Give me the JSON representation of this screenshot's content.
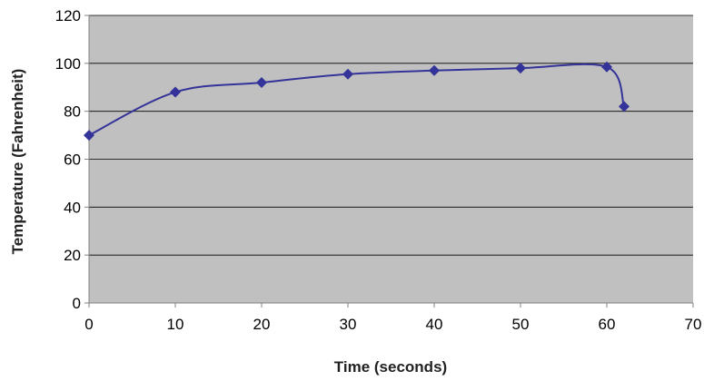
{
  "chart_data": {
    "type": "line",
    "title": "",
    "xlabel": "Time (seconds)",
    "ylabel": "Temperature (Fahrenheit)",
    "xlim": [
      0,
      70
    ],
    "ylim": [
      0,
      120
    ],
    "x_ticks": [
      0,
      10,
      20,
      30,
      40,
      50,
      60,
      70
    ],
    "y_ticks": [
      0,
      20,
      40,
      60,
      80,
      100,
      120
    ],
    "grid": "horizontal",
    "legend": "none",
    "smoothed": true,
    "series": [
      {
        "x": [
          0,
          10,
          20,
          30,
          40,
          50,
          60,
          62
        ],
        "y": [
          70,
          88,
          92,
          95.5,
          97,
          98,
          98.5,
          82
        ]
      }
    ],
    "colors": {
      "plot_background": "#c0c0c0",
      "gridline": "#000000",
      "line": "#333399",
      "marker": "#333399"
    }
  }
}
